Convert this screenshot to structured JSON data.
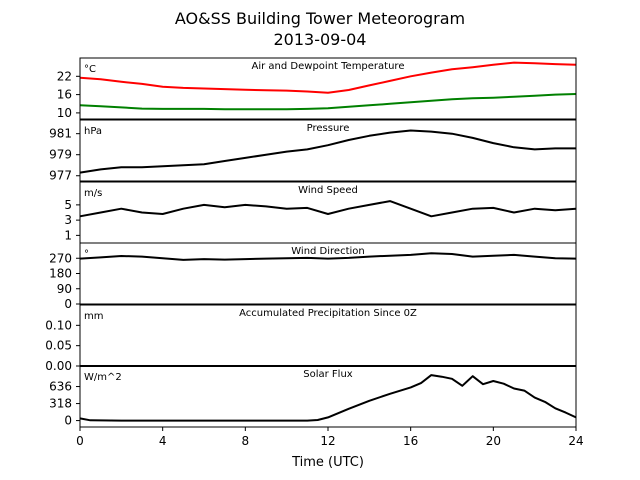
{
  "figure": {
    "title_line1": "AO&SS Building Tower Meteorogram",
    "title_line2": "2013-09-04",
    "xlabel": "Time (UTC)",
    "x_ticks": [
      "0",
      "4",
      "8",
      "12",
      "16",
      "20",
      "24"
    ]
  },
  "chart_data": [
    {
      "type": "line",
      "title": "Air and Dewpoint Temperature",
      "unit": "°C",
      "ylim": [
        8,
        28
      ],
      "y_ticks": [
        10,
        16,
        22
      ],
      "series": [
        {
          "color": "#ff0000",
          "x": [
            0,
            1,
            2,
            3,
            4,
            5,
            6,
            7,
            8,
            9,
            10,
            11,
            12,
            13,
            14,
            15,
            16,
            17,
            18,
            19,
            20,
            21,
            22,
            23,
            24
          ],
          "values": [
            21.5,
            21,
            20.2,
            19.5,
            18.6,
            18.2,
            18,
            17.8,
            17.6,
            17.4,
            17.3,
            17,
            16.6,
            17.5,
            19,
            20.5,
            22,
            23.2,
            24.3,
            25,
            25.8,
            26.5,
            26.3,
            26,
            25.8
          ]
        },
        {
          "color": "#008000",
          "x": [
            0,
            1,
            2,
            3,
            4,
            5,
            6,
            7,
            8,
            9,
            10,
            11,
            12,
            13,
            14,
            15,
            16,
            17,
            18,
            19,
            20,
            21,
            22,
            23,
            24
          ],
          "values": [
            12.5,
            12.2,
            11.8,
            11.4,
            11.3,
            11.3,
            11.3,
            11.2,
            11.2,
            11.2,
            11.2,
            11.3,
            11.5,
            12,
            12.5,
            13,
            13.5,
            14,
            14.5,
            14.8,
            15,
            15.3,
            15.6,
            16,
            16.2
          ]
        }
      ]
    },
    {
      "type": "line",
      "title": "Pressure",
      "unit": "hPa",
      "ylim": [
        976.5,
        982.3
      ],
      "y_ticks": [
        977,
        979,
        981
      ],
      "series": [
        {
          "color": "#000000",
          "x": [
            0,
            1,
            2,
            3,
            4,
            5,
            6,
            7,
            8,
            9,
            10,
            11,
            12,
            13,
            14,
            15,
            16,
            17,
            18,
            19,
            20,
            21,
            22,
            23,
            24
          ],
          "values": [
            977.3,
            977.6,
            977.8,
            977.8,
            977.9,
            978,
            978.1,
            978.4,
            978.7,
            979,
            979.3,
            979.5,
            979.9,
            980.4,
            980.8,
            981.1,
            981.3,
            981.2,
            981,
            980.6,
            980.1,
            979.7,
            979.5,
            979.6,
            979.6
          ]
        }
      ]
    },
    {
      "type": "line",
      "title": "Wind Speed",
      "unit": "m/s",
      "ylim": [
        0,
        8
      ],
      "y_ticks": [
        1,
        3,
        5
      ],
      "series": [
        {
          "color": "#000000",
          "x": [
            0,
            1,
            2,
            3,
            4,
            5,
            6,
            7,
            8,
            9,
            10,
            11,
            12,
            13,
            14,
            15,
            16,
            17,
            18,
            19,
            20,
            21,
            22,
            23,
            24
          ],
          "values": [
            3.5,
            4,
            4.5,
            4,
            3.8,
            4.5,
            5,
            4.7,
            5,
            4.8,
            4.5,
            4.6,
            3.8,
            4.5,
            5,
            5.5,
            4.5,
            3.5,
            4,
            4.5,
            4.6,
            4,
            4.5,
            4.3,
            4.5
          ]
        }
      ]
    },
    {
      "type": "line",
      "title": "Wind Direction",
      "unit": "°",
      "ylim": [
        0,
        360
      ],
      "y_ticks": [
        0,
        90,
        180,
        270
      ],
      "series": [
        {
          "color": "#000000",
          "x": [
            0,
            1,
            2,
            3,
            4,
            5,
            6,
            7,
            8,
            9,
            10,
            11,
            12,
            13,
            14,
            15,
            16,
            17,
            18,
            19,
            20,
            21,
            22,
            23,
            24
          ],
          "values": [
            268,
            275,
            283,
            280,
            270,
            260,
            265,
            262,
            265,
            268,
            270,
            272,
            268,
            272,
            280,
            285,
            290,
            300,
            295,
            280,
            285,
            290,
            280,
            270,
            268
          ]
        }
      ]
    },
    {
      "type": "line",
      "title": "Accumulated Precipitation Since 0Z",
      "unit": "mm",
      "ylim": [
        0,
        0.15
      ],
      "y_ticks": [
        0.0,
        0.05,
        0.1
      ],
      "y_tick_labels": [
        "0.00",
        "0.05",
        "0.10"
      ],
      "series": [
        {
          "color": "#000000",
          "x": [
            0,
            24
          ],
          "values": [
            0,
            0
          ]
        }
      ]
    },
    {
      "type": "line",
      "title": "Solar Flux",
      "unit": "W/m^2",
      "ylim": [
        -120,
        1020
      ],
      "y_ticks": [
        0,
        318,
        636
      ],
      "series": [
        {
          "color": "#000000",
          "x": [
            0,
            0.5,
            2,
            4,
            6,
            8,
            10,
            11,
            11.5,
            12,
            13,
            14,
            15,
            16,
            16.5,
            17,
            17.5,
            18,
            18.5,
            19,
            19.5,
            20,
            20.5,
            21,
            21.5,
            22,
            22.5,
            23,
            23.5,
            24
          ],
          "values": [
            40,
            5,
            0,
            0,
            0,
            0,
            0,
            0,
            10,
            60,
            220,
            370,
            500,
            620,
            700,
            850,
            820,
            780,
            650,
            830,
            680,
            740,
            690,
            600,
            560,
            430,
            350,
            230,
            150,
            60
          ]
        }
      ]
    }
  ]
}
